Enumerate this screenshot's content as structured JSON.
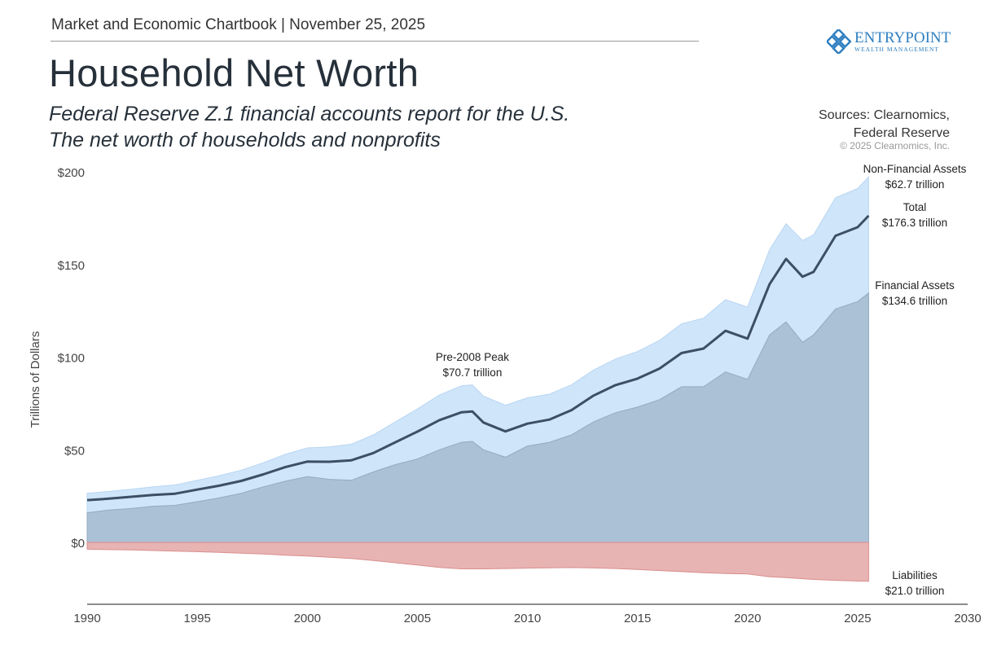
{
  "header": {
    "text": "Market and Economic Chartbook | November 25, 2025",
    "title": "Household Net Worth",
    "subtitle_1": "Federal Reserve Z.1 financial accounts report for the U.S.",
    "subtitle_2": "The net worth of households and nonprofits"
  },
  "logo": {
    "name": "EntryPoint",
    "tagline": "WEALTH MANAGEMENT"
  },
  "sources": {
    "line1": "Sources: Clearnomics,",
    "line2": "Federal Reserve",
    "copyright": "© 2025 Clearnomics, Inc."
  },
  "colors": {
    "financial": "#abc1d5",
    "non_financial": "#cfe5fa",
    "total_line": "#3c4f63",
    "liabilities": "#e8b3b3"
  },
  "chart_data": {
    "type": "area",
    "ylabel": "Trillions of Dollars",
    "xlim": [
      1990,
      2030
    ],
    "ylim": [
      -33,
      200
    ],
    "x_ticks": [
      "1990",
      "1995",
      "2000",
      "2005",
      "2010",
      "2015",
      "2020",
      "2025",
      "2030"
    ],
    "y_ticks": [
      {
        "v": 0,
        "label": "$0"
      },
      {
        "v": 50,
        "label": "$50"
      },
      {
        "v": 100,
        "label": "$100"
      },
      {
        "v": 150,
        "label": "$150"
      },
      {
        "v": 200,
        "label": "$200"
      }
    ],
    "x": [
      1990,
      1991,
      1992,
      1993,
      1994,
      1995,
      1996,
      1997,
      1998,
      1999,
      2000,
      2001,
      2002,
      2003,
      2004,
      2005,
      2006,
      2007,
      2007.5,
      2008,
      2009,
      2010,
      2011,
      2012,
      2013,
      2014,
      2015,
      2016,
      2017,
      2018,
      2019,
      2020,
      2021,
      2021.75,
      2022.5,
      2023,
      2024,
      2025,
      2025.5
    ],
    "series": [
      {
        "name": "Financial Assets",
        "values": [
          16,
          17.5,
          18.3,
          19.5,
          20,
          22,
          24,
          26.5,
          30,
          33,
          35.5,
          34,
          33.5,
          38,
          42,
          45,
          50,
          54,
          54.5,
          50,
          46,
          52,
          54,
          58,
          65,
          70,
          73,
          77,
          84,
          84,
          92,
          88,
          112,
          119,
          108,
          112,
          126,
          130,
          134.6
        ]
      },
      {
        "name": "Non-Financial Assets",
        "values": [
          10.5,
          10,
          10.4,
          10.5,
          11,
          11.5,
          12,
          12.5,
          13,
          14.5,
          15.5,
          17.5,
          19.5,
          20,
          23,
          27,
          29.5,
          30.5,
          30.5,
          29,
          28,
          26,
          26,
          27,
          28,
          29,
          30,
          32,
          34,
          37,
          39,
          39,
          46,
          53,
          55,
          54,
          60,
          61,
          62.7
        ]
      },
      {
        "name": "Liabilities",
        "values": [
          3.7,
          3.9,
          4.1,
          4.4,
          4.7,
          5,
          5.4,
          5.8,
          6.3,
          6.9,
          7.4,
          8,
          8.7,
          9.8,
          11,
          12.2,
          13.5,
          14.3,
          14.3,
          14.3,
          14.1,
          13.9,
          13.7,
          13.6,
          13.8,
          14.1,
          14.6,
          15.2,
          15.8,
          16.4,
          16.8,
          17,
          18.6,
          19,
          19.6,
          20,
          20.5,
          20.9,
          21.0
        ]
      },
      {
        "name": "Total",
        "values": [
          22.8,
          23.6,
          24.6,
          25.6,
          26.3,
          28.5,
          30.6,
          33.2,
          36.7,
          40.6,
          43.6,
          43.5,
          44.3,
          48.2,
          54,
          59.8,
          66,
          70.2,
          70.7,
          64.7,
          59.9,
          64.1,
          66.3,
          71.4,
          79.2,
          84.9,
          88.4,
          93.8,
          102.2,
          104.6,
          114.2,
          110,
          139.4,
          153,
          143.4,
          146,
          165.5,
          170.1,
          176.3
        ]
      }
    ],
    "annotations": {
      "peak": {
        "title": "Pre-2008 Peak",
        "value": "$70.7 trillion",
        "x": 2007.5,
        "y": 70.7
      },
      "non_financial": {
        "title": "Non-Financial Assets",
        "value": "$62.7 trillion"
      },
      "total": {
        "title": "Total",
        "value": "$176.3 trillion"
      },
      "financial": {
        "title": "Financial Assets",
        "value": "$134.6 trillion"
      },
      "liabilities": {
        "title": "Liabilities",
        "value": "$21.0 trillion"
      }
    }
  }
}
